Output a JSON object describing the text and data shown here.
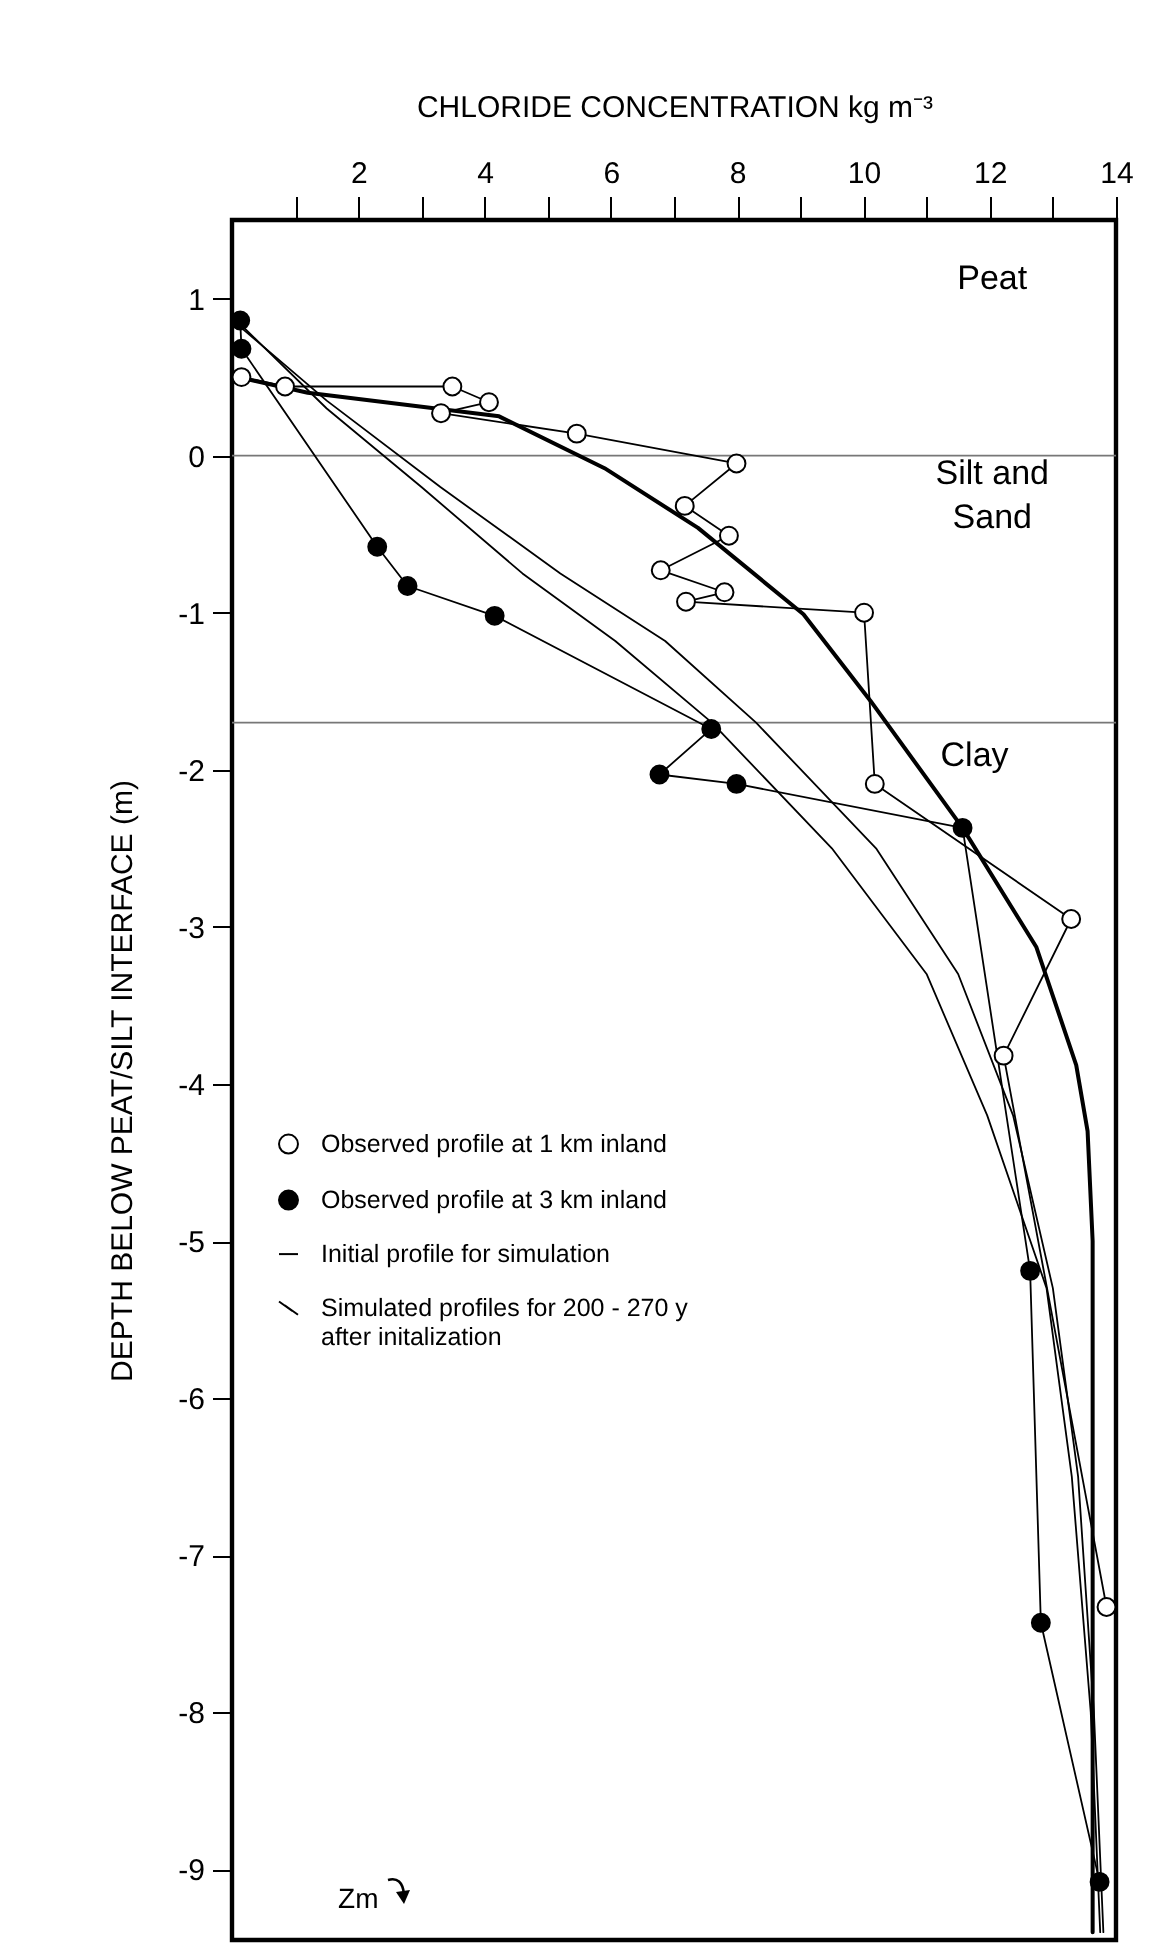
{
  "chart_data": {
    "type": "line",
    "xlabel": "CHLORIDE CONCENTRATION kg m⁻³",
    "ylabel": "DEPTH BELOW PEAT/SILT INTERFACE (m)",
    "xlim": [
      0,
      14
    ],
    "ylim": [
      -9.45,
      1.5
    ],
    "xticks": [
      {
        "value": 1,
        "label": null
      },
      2,
      {
        "value": 3,
        "label": null
      },
      4,
      {
        "value": 5,
        "label": null
      },
      6,
      {
        "value": 7,
        "label": null
      },
      8,
      {
        "value": 9,
        "label": null
      },
      10,
      {
        "value": 11,
        "label": null
      },
      12,
      {
        "value": 13,
        "label": null
      },
      14
    ],
    "yticks": [
      1,
      0,
      -1,
      -2,
      -3,
      -4,
      -5,
      -6,
      -7,
      -8,
      -9
    ],
    "grid": false,
    "legend": "left",
    "series": [
      {
        "name": "Observed profile at 1 km inland",
        "color": "#ffffff",
        "marker": "circle",
        "x": [
          0.15,
          0.84,
          3.49,
          4.07,
          3.31,
          5.46,
          7.99,
          7.17,
          7.87,
          6.79,
          7.8,
          7.19,
          10.01,
          10.18,
          13.29,
          12.22,
          13.85
        ],
        "values": [
          0.5,
          0.44,
          0.44,
          0.34,
          0.27,
          0.14,
          -0.05,
          -0.32,
          -0.51,
          -0.73,
          -0.87,
          -0.93,
          -1.0,
          -2.09,
          -2.95,
          -3.82,
          -7.33
        ]
      },
      {
        "name": "Observed profile at 3 km inland",
        "color": "#000000",
        "marker": "circle",
        "x": [
          0.13,
          0.15,
          2.3,
          2.78,
          4.16,
          7.59,
          6.77,
          7.99,
          11.57,
          12.64,
          12.81,
          13.74
        ],
        "values": [
          0.86,
          0.68,
          -0.58,
          -0.83,
          -1.02,
          -1.74,
          -2.03,
          -2.09,
          -2.37,
          -5.19,
          -7.43,
          -9.08
        ]
      },
      {
        "name": "Initial profile for simulation",
        "color": "#000000",
        "marker": "none",
        "x": [
          0.1,
          1.2,
          4.23,
          5.9,
          7.38,
          9.05,
          10.11,
          11.57,
          12.74,
          13.37,
          13.55,
          13.63,
          13.63
        ],
        "values": [
          0.5,
          0.4,
          0.25,
          -0.08,
          -0.46,
          -1.01,
          -1.56,
          -2.37,
          -3.13,
          -3.88,
          -4.3,
          -5.0,
          -9.4
        ]
      },
      {
        "name": "Simulated profiles for 200 - 270 y after initalization",
        "color": "#000000",
        "marker": "none",
        "x": [
          0.1,
          1.5,
          3.0,
          4.6,
          6.07,
          7.6,
          9.5,
          11.0,
          11.96,
          12.9,
          13.3,
          13.6,
          13.75,
          null,
          0.13,
          1.5,
          3.3,
          5.2,
          6.86,
          8.3,
          10.2,
          11.5,
          12.37,
          13.0,
          13.4,
          13.65,
          13.8
        ],
        "values": [
          0.85,
          0.3,
          -0.2,
          -0.75,
          -1.18,
          -1.7,
          -2.5,
          -3.3,
          -4.2,
          -5.3,
          -6.5,
          -8.0,
          -9.4,
          null,
          0.82,
          0.35,
          -0.2,
          -0.75,
          -1.18,
          -1.7,
          -2.5,
          -3.3,
          -4.2,
          -5.3,
          -6.5,
          -8.0,
          -9.4
        ]
      }
    ],
    "ref_lines": [
      {
        "axis": "y",
        "value": 0,
        "color": "#777777"
      },
      {
        "axis": "y",
        "value": -1.7,
        "color": "#777777"
      }
    ],
    "annotations": [
      "Peat",
      "Silt and Sand",
      "Clay",
      "Zm"
    ]
  }
}
